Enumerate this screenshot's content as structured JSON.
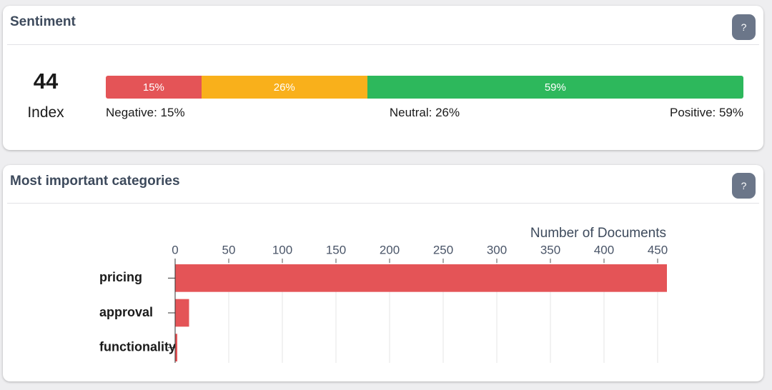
{
  "sentiment": {
    "title": "Sentiment",
    "help": "?",
    "index": "44",
    "index_label": "Index",
    "segments": [
      {
        "name": "Negative",
        "value": 15,
        "value_label": "15%",
        "color": "#e45457",
        "legend": "Negative: 15%"
      },
      {
        "name": "Neutral",
        "value": 26,
        "value_label": "26%",
        "color": "#f9b01b",
        "legend": "Neutral: 26%"
      },
      {
        "name": "Positive",
        "value": 59,
        "value_label": "59%",
        "color": "#2db85c",
        "legend": "Positive: 59%"
      }
    ]
  },
  "categories_card": {
    "title": "Most important categories",
    "help": "?",
    "chart_data": {
      "type": "bar",
      "orientation": "horizontal",
      "x_label": "Number of Documents",
      "categories": [
        "pricing",
        "approval",
        "functionality"
      ],
      "values": [
        460,
        13,
        2
      ],
      "color": "#e45457",
      "xlim": [
        0,
        458
      ],
      "xticks": [
        0,
        50,
        100,
        150,
        200,
        250,
        300,
        350,
        400,
        450
      ],
      "grid": true
    }
  }
}
